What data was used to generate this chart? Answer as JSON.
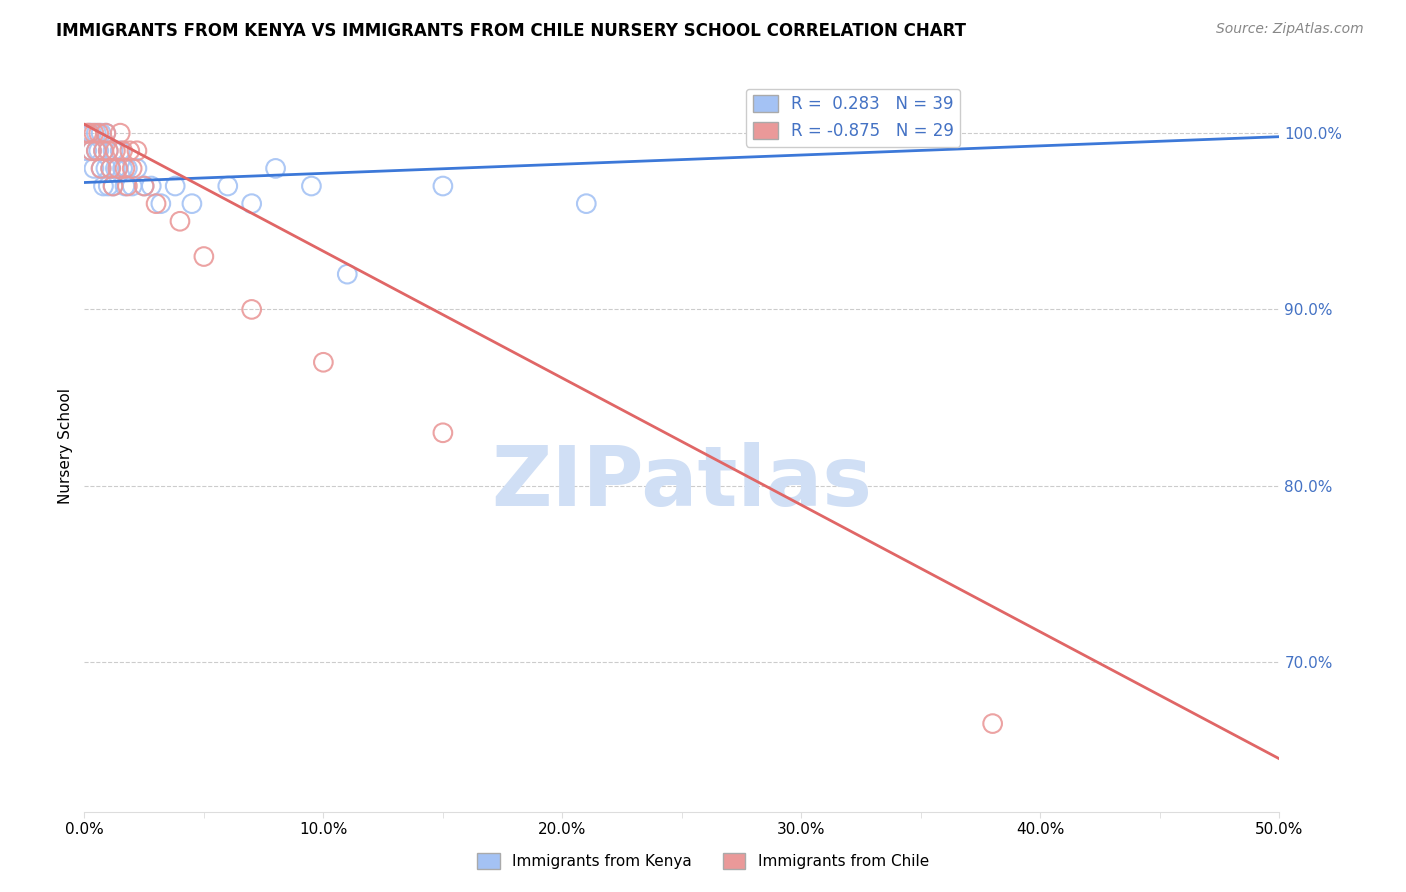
{
  "title": "IMMIGRANTS FROM KENYA VS IMMIGRANTS FROM CHILE NURSERY SCHOOL CORRELATION CHART",
  "source": "Source: ZipAtlas.com",
  "ylabel": "Nursery School",
  "ylabel_right_ticks": [
    "100.0%",
    "90.0%",
    "80.0%",
    "70.0%"
  ],
  "ylabel_right_vals": [
    1.0,
    0.9,
    0.8,
    0.7
  ],
  "legend_kenya": "R =  0.283   N = 39",
  "legend_chile": "R = -0.875   N = 29",
  "kenya_color": "#a4c2f4",
  "chile_color": "#ea9999",
  "kenya_line_color": "#3c78d8",
  "chile_line_color": "#e06666",
  "watermark": "ZIPatlas",
  "watermark_color": "#d0dff5",
  "background_color": "#ffffff",
  "xlim": [
    0.0,
    0.5
  ],
  "ylim": [
    0.615,
    1.03
  ],
  "kenya_scatter_x": [
    0.001,
    0.002,
    0.003,
    0.003,
    0.004,
    0.005,
    0.005,
    0.006,
    0.007,
    0.007,
    0.008,
    0.008,
    0.009,
    0.009,
    0.01,
    0.01,
    0.011,
    0.012,
    0.012,
    0.013,
    0.014,
    0.015,
    0.016,
    0.017,
    0.018,
    0.02,
    0.022,
    0.025,
    0.028,
    0.032,
    0.038,
    0.045,
    0.06,
    0.07,
    0.08,
    0.095,
    0.11,
    0.15,
    0.21
  ],
  "kenya_scatter_y": [
    0.99,
    1.0,
    0.99,
    1.0,
    0.98,
    1.0,
    0.99,
    0.99,
    1.0,
    0.98,
    0.99,
    0.97,
    1.0,
    0.98,
    0.99,
    0.97,
    0.98,
    0.99,
    0.97,
    0.98,
    0.98,
    0.99,
    0.98,
    0.97,
    0.98,
    0.97,
    0.98,
    0.97,
    0.97,
    0.96,
    0.97,
    0.96,
    0.97,
    0.96,
    0.98,
    0.97,
    0.92,
    0.97,
    0.96
  ],
  "chile_scatter_x": [
    0.001,
    0.002,
    0.003,
    0.004,
    0.005,
    0.006,
    0.007,
    0.008,
    0.009,
    0.01,
    0.011,
    0.012,
    0.013,
    0.014,
    0.015,
    0.016,
    0.017,
    0.018,
    0.019,
    0.02,
    0.022,
    0.025,
    0.03,
    0.04,
    0.05,
    0.07,
    0.1,
    0.15,
    0.38
  ],
  "chile_scatter_y": [
    1.0,
    1.0,
    0.99,
    1.0,
    0.99,
    1.0,
    0.98,
    0.99,
    1.0,
    0.99,
    0.98,
    0.97,
    0.99,
    0.98,
    1.0,
    0.99,
    0.98,
    0.97,
    0.99,
    0.98,
    0.99,
    0.97,
    0.96,
    0.95,
    0.93,
    0.9,
    0.87,
    0.83,
    0.665
  ],
  "kenya_line_x": [
    0.0,
    0.5
  ],
  "kenya_line_y": [
    0.972,
    0.998
  ],
  "chile_line_x": [
    0.0,
    0.5
  ],
  "chile_line_y": [
    1.005,
    0.645
  ]
}
